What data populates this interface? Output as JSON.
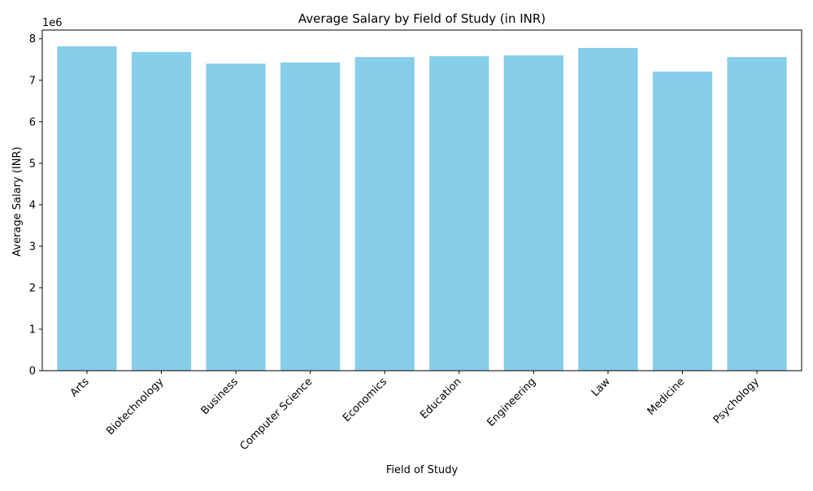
{
  "chart_data": {
    "type": "bar",
    "title": "Average Salary by Field of Study (in INR)",
    "xlabel": "Field of Study",
    "ylabel": "Average Salary (INR)",
    "offset_label": "1e6",
    "categories": [
      "Arts",
      "Biotechnology",
      "Business",
      "Computer Science",
      "Economics",
      "Education",
      "Engineering",
      "Law",
      "Medicine",
      "Psychology"
    ],
    "values": [
      7820000,
      7680000,
      7400000,
      7430000,
      7560000,
      7580000,
      7600000,
      7780000,
      7210000,
      7560000
    ],
    "yticks": [
      0,
      1,
      2,
      3,
      4,
      5,
      6,
      7,
      8
    ],
    "ylim": [
      0,
      8.21
    ],
    "y_scale": 1000000,
    "grid": false,
    "legend": "none",
    "bar_color": "#87ceeb"
  }
}
